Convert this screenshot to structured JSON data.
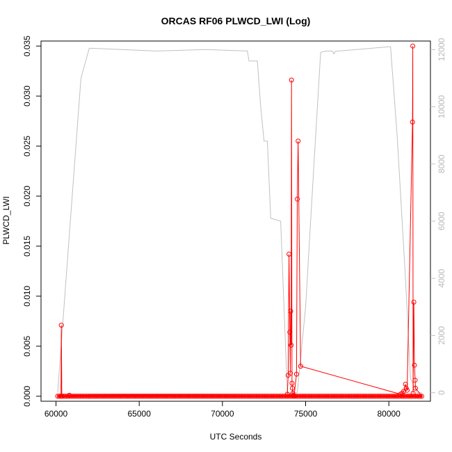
{
  "chart_data": {
    "type": "line",
    "title": "ORCAS RF06 PLWCD_LWI (Log)",
    "xlabel": "UTC Seconds",
    "ylabel": "PLWCD_LWI",
    "xlim": [
      59100,
      82500
    ],
    "ylim": [
      -0.0005,
      0.0355
    ],
    "y2lim": [
      -300,
      12300
    ],
    "xticks": [
      "60000",
      "65000",
      "70000",
      "75000",
      "80000"
    ],
    "yticks": [
      "0.000",
      "0.005",
      "0.010",
      "0.015",
      "0.020",
      "0.025",
      "0.030",
      "0.035"
    ],
    "y2ticks": [
      "0",
      "2000",
      "4000",
      "6000",
      "8000",
      "10000",
      "12000"
    ],
    "colors": {
      "primary": "#ff0000",
      "secondary": "#c0c0c0"
    },
    "baseline": {
      "x_start": 60100,
      "x_end": 82000,
      "value": 0
    },
    "series": [
      {
        "color": "#ff0000",
        "axis": "left",
        "marker": "open-circle",
        "x": [
          60300,
          60320,
          60350,
          60800,
          73900,
          73950,
          74000,
          74050,
          74080,
          74100,
          74130,
          74150,
          74180,
          74200,
          74230,
          74260,
          74300,
          74450,
          74500,
          74550,
          74700,
          80700,
          80800,
          80900,
          81000,
          81050,
          81100,
          81420,
          81440,
          81460,
          81500,
          81540,
          81580,
          81600
        ],
        "y": [
          0,
          0.0071,
          0,
          0.0001,
          0.0002,
          0.0021,
          0.0142,
          0.0064,
          0.0023,
          0.0085,
          0.0051,
          0.0316,
          0.0013,
          0.0008,
          0.0003,
          0.0001,
          0,
          0.0022,
          0.0197,
          0.0255,
          0.003,
          0.0002,
          0.0003,
          0.0005,
          0.0012,
          0.0008,
          0.0006,
          0.0274,
          0.035,
          0.0003,
          0.0094,
          0.0031,
          0.0016,
          0.0008
        ]
      },
      {
        "color": "#c0c0c0",
        "axis": "right",
        "x": [
          60100,
          61500,
          62000,
          66000,
          69000,
          71500,
          71600,
          72100,
          72300,
          72500,
          72700,
          72900,
          73500,
          73900,
          74100,
          74400,
          74500,
          75000,
          75300,
          75500,
          75900,
          76200,
          76600,
          76700,
          76800,
          77000,
          80000,
          80100,
          80500,
          81000,
          81300,
          81700,
          82000
        ],
        "y": [
          0,
          11000,
          12050,
          11950,
          12000,
          11950,
          11600,
          11600,
          10000,
          8800,
          8800,
          6100,
          6000,
          0,
          0,
          0,
          0,
          3000,
          6000,
          8000,
          11900,
          11950,
          11950,
          11850,
          11950,
          11950,
          12100,
          12100,
          9000,
          4000,
          500,
          0,
          0
        ]
      }
    ]
  }
}
